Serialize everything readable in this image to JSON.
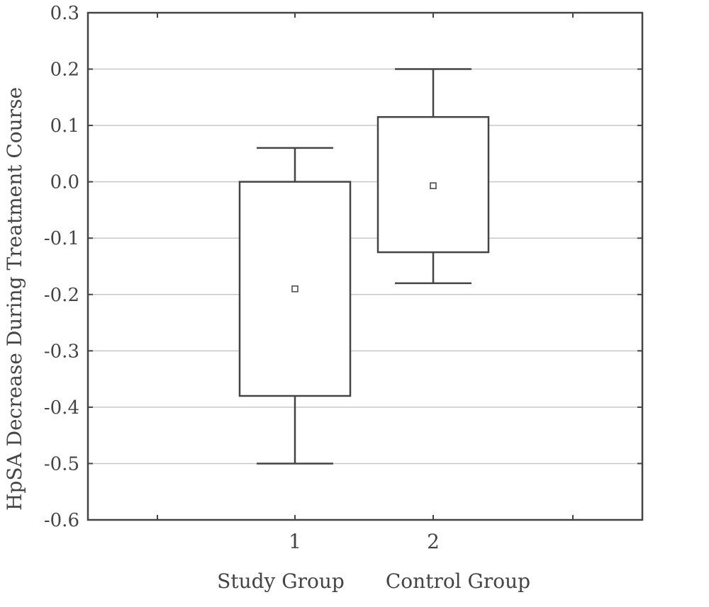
{
  "chart_data": {
    "type": "box",
    "ylabel": "HpSA Decrease During Treatment Course",
    "xlabel": "",
    "ylim": [
      -0.6,
      0.3
    ],
    "yticks": [
      "0.3",
      "0.2",
      "0.1",
      "0.0",
      "-0.1",
      "-0.2",
      "-0.3",
      "-0.4",
      "-0.5",
      "-0.6"
    ],
    "grid": true,
    "categories": [
      "1",
      "2"
    ],
    "group_names": [
      "Study Group",
      "Control Group"
    ],
    "boxes": [
      {
        "whisker_low": -0.5,
        "q1": -0.38,
        "mean": -0.19,
        "q3": 0.0,
        "whisker_high": 0.06
      },
      {
        "whisker_low": -0.18,
        "q1": -0.125,
        "mean": -0.007,
        "q3": 0.115,
        "whisker_high": 0.2
      }
    ]
  }
}
